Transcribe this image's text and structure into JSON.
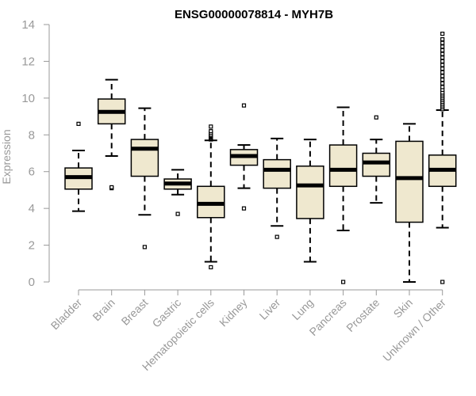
{
  "chart_data": {
    "type": "box",
    "title": "ENSG00000078814 - MYH7B",
    "ylabel": "Expression",
    "ylim": [
      0,
      14
    ],
    "yticks": [
      0,
      2,
      4,
      6,
      8,
      10,
      12,
      14
    ],
    "box_fill": "#efe8cf",
    "box_stroke": "#000000",
    "axis_color": "#999999",
    "categories": [
      "Bladder",
      "Brain",
      "Breast",
      "Gastric",
      "Hematopoietic cells",
      "Kidney",
      "Liver",
      "Lung",
      "Pancreas",
      "Prostate",
      "Skin",
      "Unknown / Other"
    ],
    "boxes": [
      {
        "category": "Bladder",
        "whisker_low": 3.85,
        "q1": 5.05,
        "median": 5.7,
        "q3": 6.2,
        "whisker_high": 7.15,
        "outliers": [
          8.6
        ]
      },
      {
        "category": "Brain",
        "whisker_low": 6.85,
        "q1": 8.6,
        "median": 9.25,
        "q3": 9.95,
        "whisker_high": 11.0,
        "outliers": [
          5.1,
          5.15
        ]
      },
      {
        "category": "Breast",
        "whisker_low": 3.65,
        "q1": 5.75,
        "median": 7.25,
        "q3": 7.75,
        "whisker_high": 9.45,
        "outliers": [
          1.9
        ]
      },
      {
        "category": "Gastric",
        "whisker_low": 4.75,
        "q1": 5.05,
        "median": 5.35,
        "q3": 5.6,
        "whisker_high": 6.1,
        "outliers": [
          3.7
        ]
      },
      {
        "category": "Hematopoietic cells",
        "whisker_low": 1.1,
        "q1": 3.5,
        "median": 4.25,
        "q3": 5.2,
        "whisker_high": 7.7,
        "outliers": [
          0.8,
          7.75,
          7.8,
          7.85,
          7.9,
          7.95,
          8.0,
          8.1,
          8.2,
          8.45
        ]
      },
      {
        "category": "Kidney",
        "whisker_low": 5.1,
        "q1": 6.35,
        "median": 6.85,
        "q3": 7.2,
        "whisker_high": 7.45,
        "outliers": [
          4.0,
          9.6
        ]
      },
      {
        "category": "Liver",
        "whisker_low": 3.05,
        "q1": 5.1,
        "median": 6.1,
        "q3": 6.65,
        "whisker_high": 7.8,
        "outliers": [
          2.45
        ]
      },
      {
        "category": "Lung",
        "whisker_low": 1.1,
        "q1": 3.45,
        "median": 5.25,
        "q3": 6.3,
        "whisker_high": 7.75,
        "outliers": []
      },
      {
        "category": "Pancreas",
        "whisker_low": 2.8,
        "q1": 5.2,
        "median": 6.1,
        "q3": 7.45,
        "whisker_high": 9.5,
        "outliers": [
          0.0
        ]
      },
      {
        "category": "Prostate",
        "whisker_low": 4.3,
        "q1": 5.75,
        "median": 6.5,
        "q3": 7.0,
        "whisker_high": 7.75,
        "outliers": [
          8.95
        ]
      },
      {
        "category": "Skin",
        "whisker_low": 0.0,
        "q1": 3.25,
        "median": 5.65,
        "q3": 7.65,
        "whisker_high": 8.6,
        "outliers": []
      },
      {
        "category": "Unknown / Other",
        "whisker_low": 2.95,
        "q1": 5.2,
        "median": 6.1,
        "q3": 6.9,
        "whisker_high": 9.35,
        "outliers": [
          0.0,
          9.4,
          9.5,
          9.6,
          9.7,
          9.8,
          9.9,
          10.0,
          10.1,
          10.2,
          10.3,
          10.45,
          10.6,
          10.8,
          11.0,
          11.2,
          11.4,
          11.6,
          11.8,
          12.0,
          12.2,
          12.4,
          12.6,
          12.8,
          13.0,
          13.2,
          13.5
        ]
      }
    ]
  }
}
